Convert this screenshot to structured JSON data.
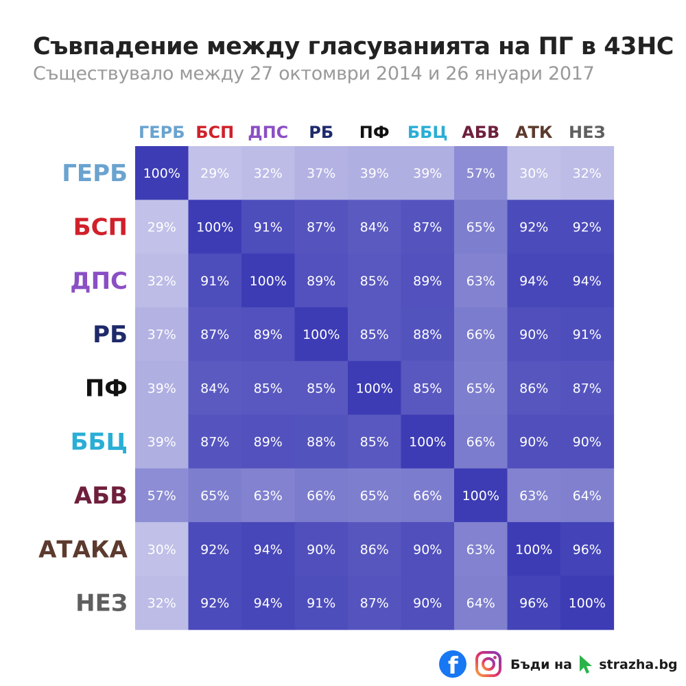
{
  "header": {
    "title": "Съвпадение между гласуванията на ПГ в 43НС",
    "subtitle": "Съществувало между 27 октомври 2014 и 26 януари 2017"
  },
  "chart_data": {
    "type": "heatmap",
    "columns": [
      {
        "label": "ГЕРБ",
        "color": "#6aa3cf"
      },
      {
        "label": "БСП",
        "color": "#d0202a"
      },
      {
        "label": "ДПС",
        "color": "#8a4fc4"
      },
      {
        "label": "РБ",
        "color": "#1f2a6b"
      },
      {
        "label": "ПФ",
        "color": "#111111"
      },
      {
        "label": "ББЦ",
        "color": "#2aaed6"
      },
      {
        "label": "АБВ",
        "color": "#6e1f3c"
      },
      {
        "label": "АТК",
        "color": "#5c3a2e"
      },
      {
        "label": "НЕЗ",
        "color": "#5f5f5f"
      }
    ],
    "rows": [
      {
        "label": "ГЕРБ",
        "color": "#6aa3cf"
      },
      {
        "label": "БСП",
        "color": "#d0202a"
      },
      {
        "label": "ДПС",
        "color": "#8a4fc4"
      },
      {
        "label": "РБ",
        "color": "#1f2a6b"
      },
      {
        "label": "ПФ",
        "color": "#111111"
      },
      {
        "label": "ББЦ",
        "color": "#2aaed6"
      },
      {
        "label": "АБВ",
        "color": "#6e1f3c"
      },
      {
        "label": "АТАКА",
        "color": "#5c3a2e"
      },
      {
        "label": "НЕЗ",
        "color": "#5f5f5f"
      }
    ],
    "values": [
      [
        100,
        29,
        32,
        37,
        39,
        39,
        57,
        30,
        32
      ],
      [
        29,
        100,
        91,
        87,
        84,
        87,
        65,
        92,
        92
      ],
      [
        32,
        91,
        100,
        89,
        85,
        89,
        63,
        94,
        94
      ],
      [
        37,
        87,
        89,
        100,
        85,
        88,
        66,
        90,
        91
      ],
      [
        39,
        84,
        85,
        85,
        100,
        85,
        65,
        86,
        87
      ],
      [
        39,
        87,
        89,
        88,
        85,
        100,
        66,
        90,
        90
      ],
      [
        57,
        65,
        63,
        66,
        65,
        66,
        100,
        63,
        64
      ],
      [
        30,
        92,
        94,
        90,
        86,
        90,
        63,
        100,
        96
      ],
      [
        32,
        92,
        94,
        91,
        87,
        90,
        64,
        96,
        100
      ]
    ],
    "value_suffix": "%",
    "color_low": "#c9c9ec",
    "color_high": "#3d3cb5"
  },
  "footer": {
    "facebook_icon": "facebook-icon",
    "instagram_icon": "instagram-icon",
    "brand_part1": "Бъди на",
    "brand_part2": "strazha.bg",
    "cursor_color": "#2bb34a"
  }
}
